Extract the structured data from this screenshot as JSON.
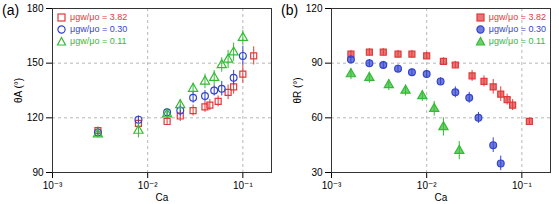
{
  "chart_data": [
    {
      "type": "scatter",
      "title": "(a)",
      "x_label": "Ca",
      "y_label": "θA (°)",
      "log": "x",
      "grid": true,
      "legend": "upper left",
      "xlim": [
        0.001,
        0.2
      ],
      "ylim": [
        90,
        180
      ],
      "xticks": [
        {
          "value": 0.001,
          "label": "10⁻³"
        },
        {
          "value": 0.01,
          "label": "10⁻²"
        },
        {
          "value": 0.1,
          "label": "10⁻¹"
        }
      ],
      "yticks": [
        90,
        120,
        150,
        180
      ],
      "series": [
        {
          "name": "μgw/μo = 3.82",
          "color": "#e03a3a",
          "marker": "square_open",
          "x": [
            0.003,
            0.008,
            0.016,
            0.022,
            0.03,
            0.04,
            0.045,
            0.055,
            0.07,
            0.08,
            0.1,
            0.13
          ],
          "values": [
            113,
            117,
            118,
            121,
            124,
            126,
            127,
            129,
            134,
            137,
            144,
            154
          ],
          "errors": [
            2,
            2,
            2,
            3,
            3,
            3,
            3,
            3,
            4,
            4,
            5,
            5
          ]
        },
        {
          "name": "μgw/μo = 0.30",
          "color": "#3344cc",
          "marker": "circle_open",
          "x": [
            0.003,
            0.008,
            0.016,
            0.022,
            0.03,
            0.04,
            0.05,
            0.06,
            0.08,
            0.1
          ],
          "values": [
            112,
            119,
            123,
            124,
            131,
            132,
            135,
            136,
            142,
            154
          ],
          "errors": [
            2,
            2,
            2,
            3,
            3,
            3,
            3,
            4,
            4,
            5
          ]
        },
        {
          "name": "μgw/μo = 0.11",
          "color": "#33bb33",
          "marker": "triangle_open",
          "x": [
            0.003,
            0.008,
            0.016,
            0.022,
            0.03,
            0.04,
            0.05,
            0.06,
            0.07,
            0.08,
            0.1
          ],
          "values": [
            111,
            113,
            122,
            127,
            136,
            140,
            142,
            149,
            152,
            156,
            164
          ],
          "errors": [
            2,
            4,
            2,
            3,
            3,
            4,
            4,
            4,
            5,
            5,
            4
          ]
        }
      ]
    },
    {
      "type": "scatter",
      "title": "(b)",
      "x_label": "Ca",
      "y_label": "θR (°)",
      "log": "x",
      "grid": true,
      "legend": "upper right",
      "xlim": [
        0.001,
        0.2
      ],
      "ylim": [
        30,
        120
      ],
      "xticks": [
        {
          "value": 0.001,
          "label": "10⁻³"
        },
        {
          "value": 0.01,
          "label": "10⁻²"
        },
        {
          "value": 0.1,
          "label": "10⁻¹"
        }
      ],
      "yticks": [
        30,
        60,
        90,
        120
      ],
      "series": [
        {
          "name": "μgw/μo = 3.82",
          "color": "#e03a3a",
          "marker": "square",
          "x": [
            0.0016,
            0.0025,
            0.0035,
            0.005,
            0.007,
            0.01,
            0.015,
            0.02,
            0.03,
            0.04,
            0.05,
            0.06,
            0.07,
            0.08,
            0.12
          ],
          "values": [
            95,
            96,
            96,
            95,
            95,
            94,
            91,
            89,
            83,
            80,
            77,
            73,
            70,
            67,
            58
          ],
          "errors": [
            2,
            2,
            2,
            2,
            2,
            2,
            2,
            2,
            3,
            3,
            4,
            4,
            3,
            3,
            2
          ]
        },
        {
          "name": "μgw/μo = 0.30",
          "color": "#3344cc",
          "marker": "circle",
          "x": [
            0.0016,
            0.0025,
            0.0035,
            0.005,
            0.007,
            0.01,
            0.014,
            0.02,
            0.028,
            0.035,
            0.05,
            0.06
          ],
          "values": [
            92,
            90,
            89,
            87,
            85,
            84,
            80,
            74,
            71,
            60,
            45,
            35
          ],
          "errors": [
            2,
            2,
            2,
            2,
            2,
            2,
            2,
            3,
            3,
            3,
            4,
            4
          ]
        },
        {
          "name": "μgw/μo = 0.11",
          "color": "#33bb33",
          "marker": "triangle",
          "x": [
            0.0016,
            0.0025,
            0.004,
            0.006,
            0.009,
            0.012,
            0.015,
            0.022
          ],
          "values": [
            84,
            82,
            78,
            75,
            72,
            65,
            55,
            42
          ],
          "errors": [
            3,
            3,
            3,
            3,
            3,
            4,
            5,
            5
          ]
        }
      ]
    }
  ]
}
